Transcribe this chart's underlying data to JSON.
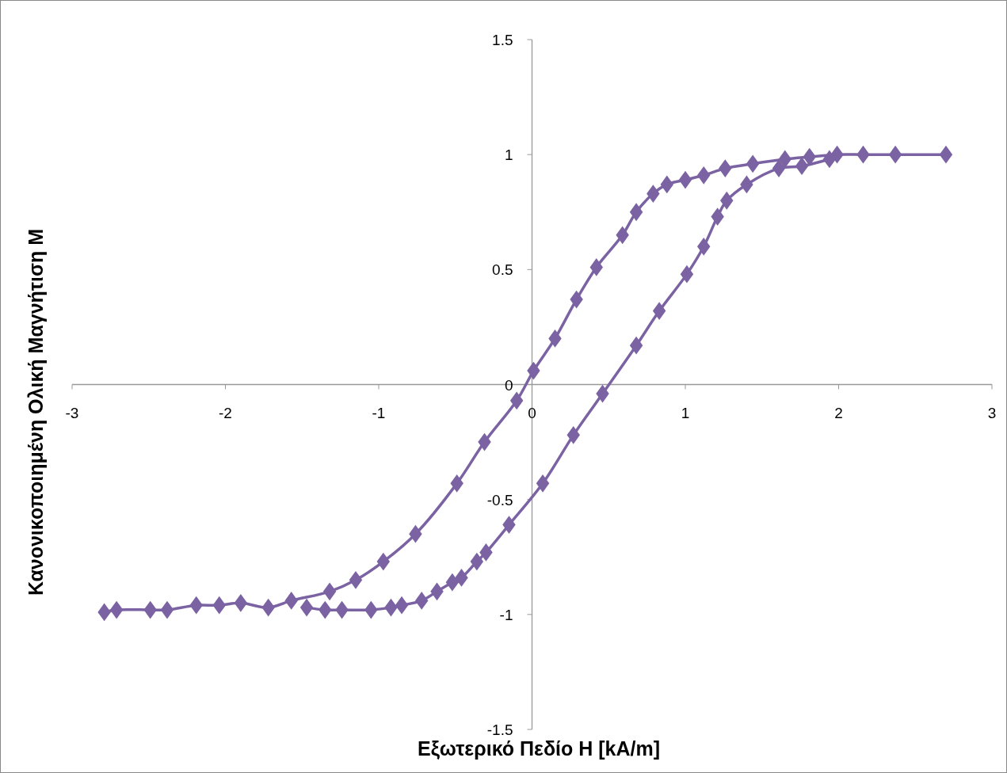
{
  "chart_data": {
    "type": "line",
    "xlabel": "Εξωτερικό Πεδίο H [kA/m]",
    "ylabel": "Κανονικοποιημένη Ολική Μαγνήτιση M",
    "xlim": [
      -3,
      3
    ],
    "xticks": [
      -3,
      -2,
      -1,
      0,
      1,
      2,
      3
    ],
    "ylim": [
      -1.5,
      1.5
    ],
    "yticks": [
      -1.5,
      -1,
      -0.5,
      0,
      0.5,
      1,
      1.5
    ],
    "grid": false,
    "marker": "diamond",
    "line_style": "solid",
    "series": [
      {
        "color": "#7b62a3",
        "x": [
          2.7,
          2.37,
          2.16,
          1.99,
          1.81,
          1.65,
          1.44,
          1.26,
          1.12,
          1.0,
          0.88,
          0.79,
          0.68,
          0.59,
          0.42,
          0.29,
          0.15,
          0.01,
          -0.1,
          -0.31,
          -0.49,
          -0.76,
          -0.97,
          -1.15,
          -1.32,
          -1.57,
          -1.72,
          -1.9,
          -2.04,
          -2.19,
          -2.38,
          -2.49,
          -2.71,
          -2.79
        ],
        "values": [
          1.0,
          1.0,
          1.0,
          1.0,
          0.99,
          0.98,
          0.96,
          0.94,
          0.91,
          0.89,
          0.87,
          0.83,
          0.75,
          0.65,
          0.51,
          0.37,
          0.2,
          0.06,
          -0.07,
          -0.25,
          -0.43,
          -0.65,
          -0.77,
          -0.85,
          -0.9,
          -0.94,
          -0.97,
          -0.95,
          -0.96,
          -0.96,
          -0.98,
          -0.98,
          -0.98,
          -0.99
        ]
      },
      {
        "color": "#7b62a3",
        "x": [
          -1.47,
          -1.35,
          -1.24,
          -1.05,
          -0.92,
          -0.85,
          -0.72,
          -0.62,
          -0.52,
          -0.46,
          -0.36,
          -0.3,
          -0.15,
          0.07,
          0.27,
          0.46,
          0.68,
          0.83,
          1.01,
          1.12,
          1.21,
          1.27,
          1.4,
          1.61,
          1.76,
          1.94
        ],
        "values": [
          -0.97,
          -0.98,
          -0.98,
          -0.98,
          -0.97,
          -0.96,
          -0.94,
          -0.9,
          -0.86,
          -0.84,
          -0.77,
          -0.73,
          -0.61,
          -0.43,
          -0.22,
          -0.04,
          0.17,
          0.32,
          0.48,
          0.6,
          0.73,
          0.8,
          0.87,
          0.94,
          0.95,
          0.98
        ]
      }
    ]
  }
}
